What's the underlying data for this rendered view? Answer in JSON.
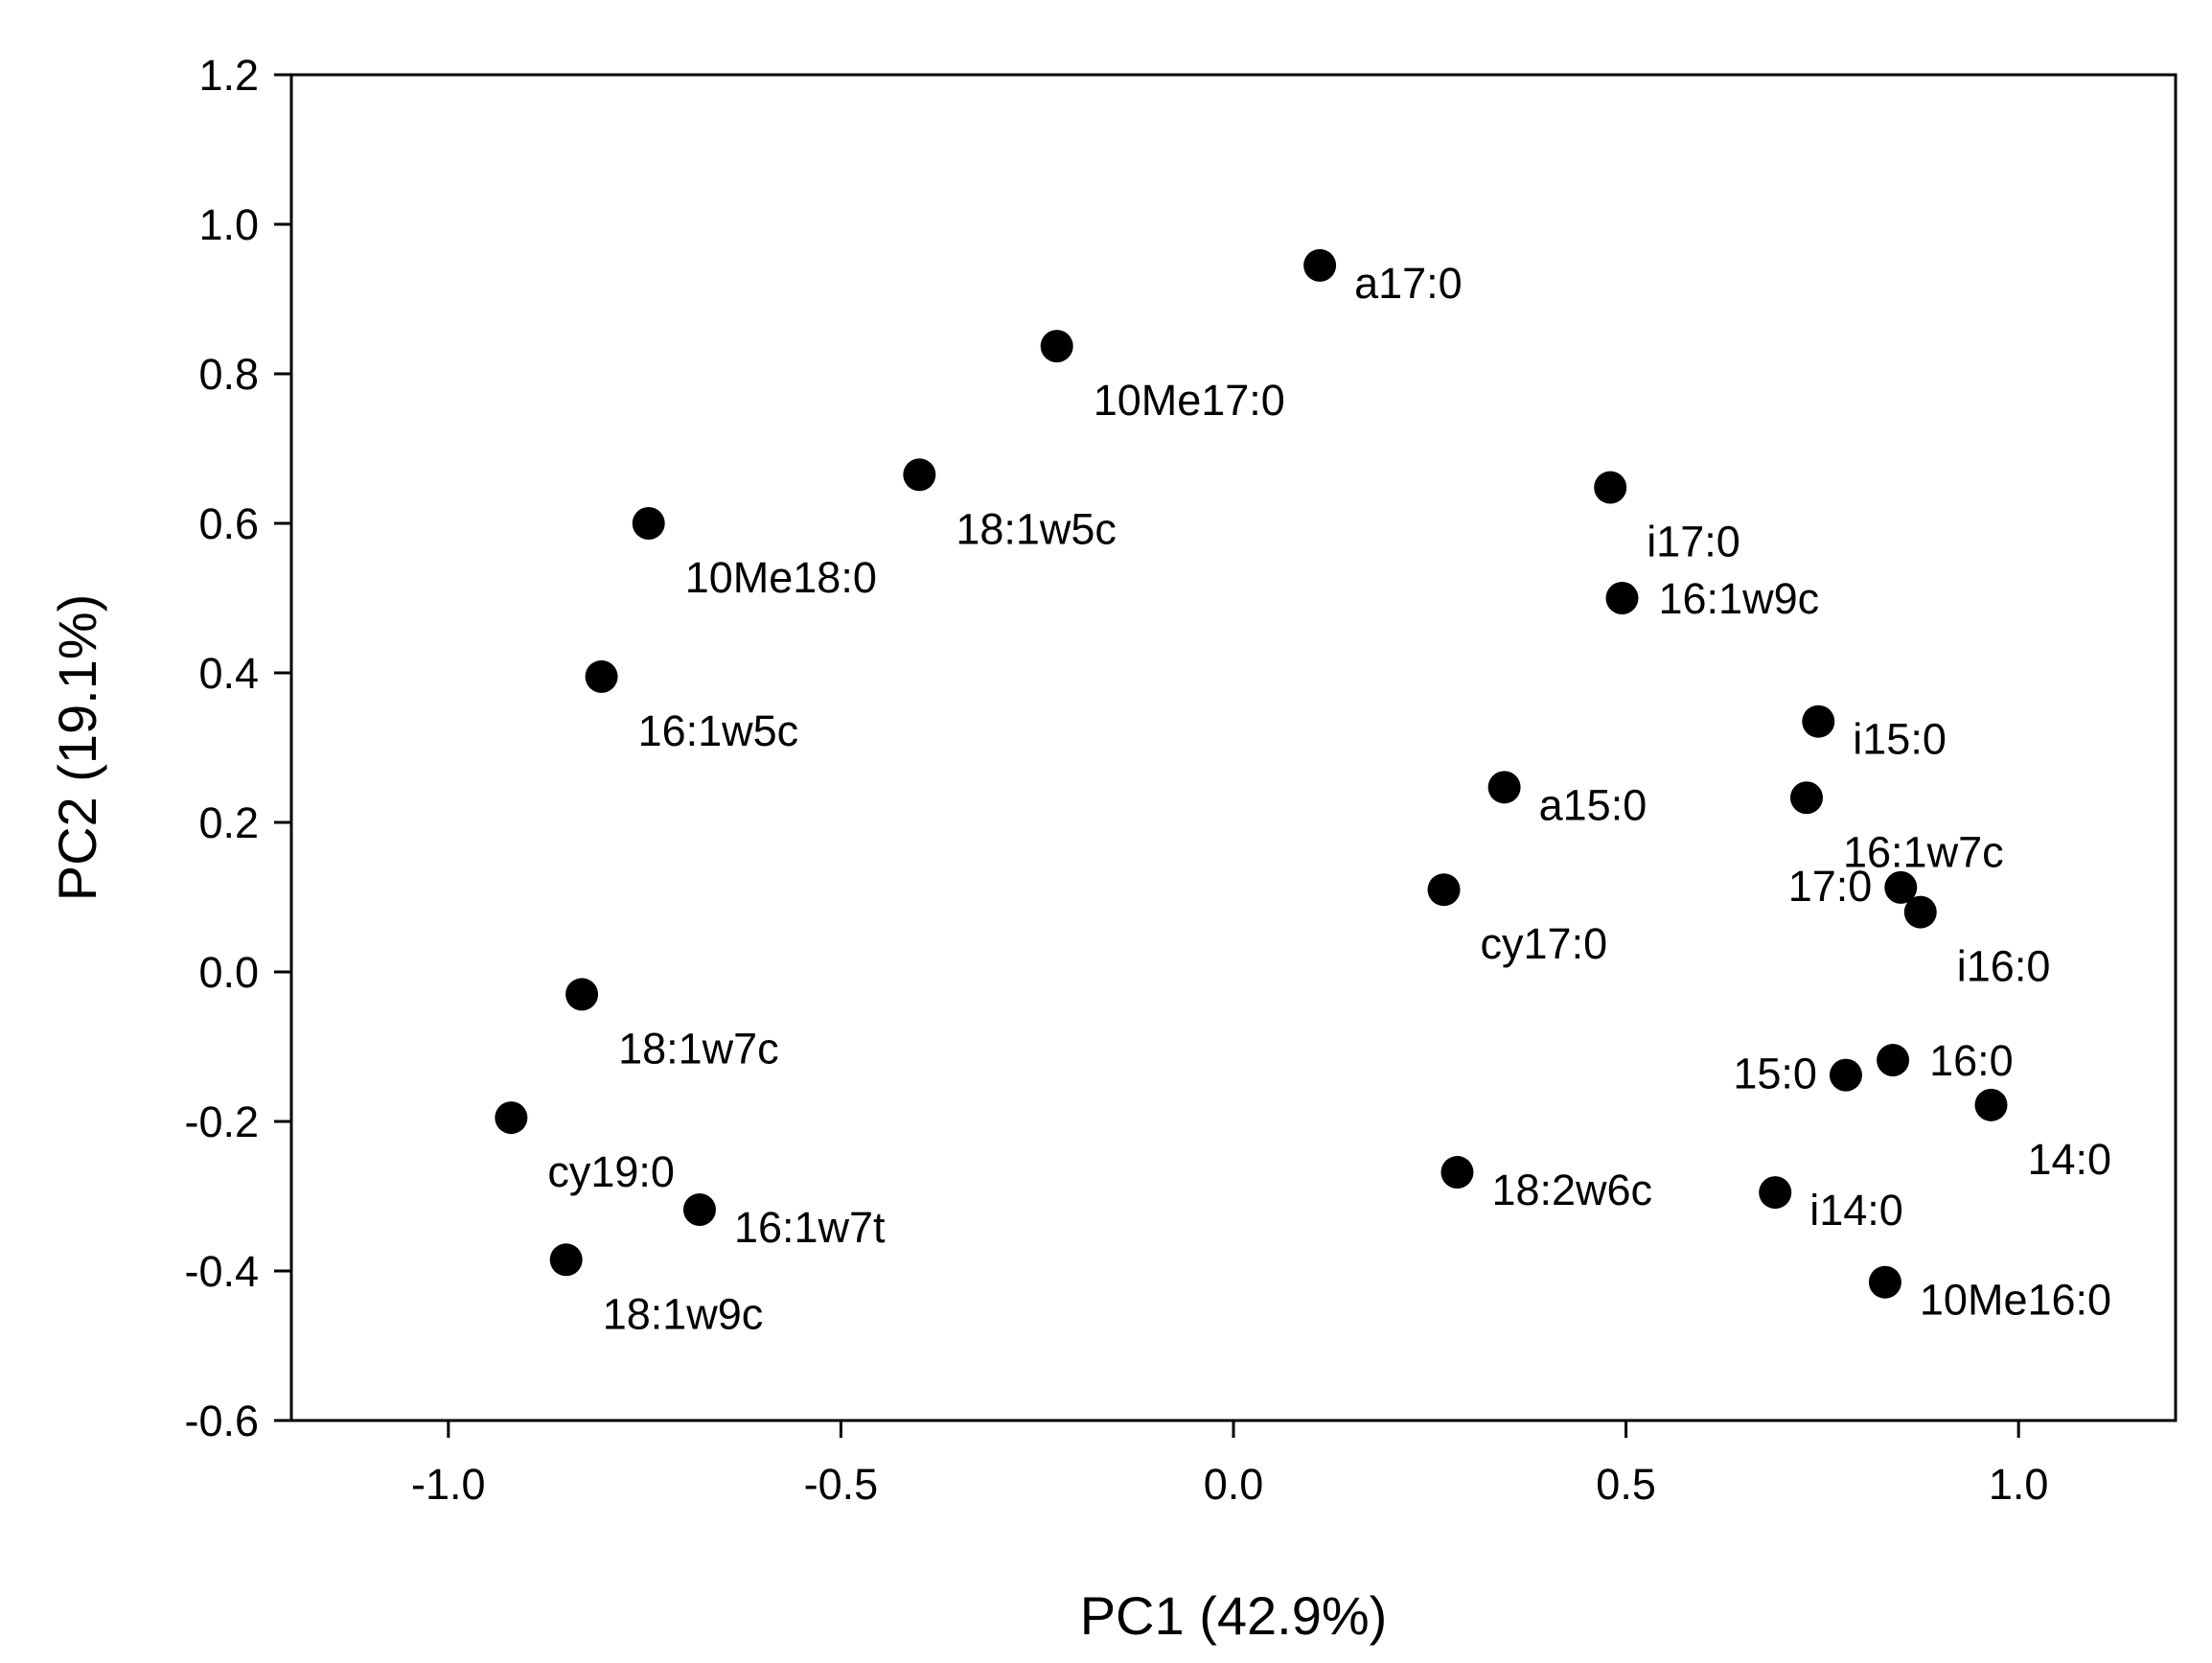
{
  "chart_data": {
    "type": "scatter",
    "title": "",
    "xlabel": "PC1 (42.9%)",
    "ylabel": "PC2 (19.1%)",
    "xlim": [
      -1.2,
      1.2
    ],
    "ylim": [
      -0.6,
      1.2
    ],
    "xticks": [
      -1.0,
      -0.5,
      0.0,
      0.5,
      1.0
    ],
    "xtick_labels": [
      "-1.0",
      "-0.5",
      "0.0",
      "0.5",
      "1.0"
    ],
    "yticks": [
      -0.6,
      -0.4,
      -0.2,
      0.0,
      0.2,
      0.4,
      0.6,
      0.8,
      1.0,
      1.2
    ],
    "ytick_labels": [
      "-0.6",
      "-0.4",
      "-0.2",
      "0.0",
      "0.2",
      "0.4",
      "0.6",
      "0.8",
      "1.0",
      "1.2"
    ],
    "grid": false,
    "marker_color": "#000000",
    "points": [
      {
        "label": "a17:0",
        "x": 0.11,
        "y": 0.945,
        "label_pos": "right-below"
      },
      {
        "label": "10Me17:0",
        "x": -0.225,
        "y": 0.837,
        "label_pos": "below-right"
      },
      {
        "label": "18:1w5c",
        "x": -0.4,
        "y": 0.665,
        "label_pos": "below-right"
      },
      {
        "label": "10Me18:0",
        "x": -0.745,
        "y": 0.6,
        "label_pos": "below-right"
      },
      {
        "label": "16:1w5c",
        "x": -0.805,
        "y": 0.395,
        "label_pos": "below-right"
      },
      {
        "label": "i17:0",
        "x": 0.48,
        "y": 0.648,
        "label_pos": "below-right"
      },
      {
        "label": "16:1w9c",
        "x": 0.495,
        "y": 0.5,
        "label_pos": "right"
      },
      {
        "label": "i15:0",
        "x": 0.745,
        "y": 0.335,
        "label_pos": "right-below"
      },
      {
        "label": "a15:0",
        "x": 0.345,
        "y": 0.247,
        "label_pos": "right-below"
      },
      {
        "label": "16:1w7c",
        "x": 0.73,
        "y": 0.233,
        "label_pos": "below-right"
      },
      {
        "label": "cy17:0",
        "x": 0.268,
        "y": 0.11,
        "label_pos": "below-right"
      },
      {
        "label": "17:0",
        "x": 0.85,
        "y": 0.113,
        "label_pos": "left"
      },
      {
        "label": "i16:0",
        "x": 0.875,
        "y": 0.08,
        "label_pos": "below-right"
      },
      {
        "label": "18:1w7c",
        "x": -0.83,
        "y": -0.03,
        "label_pos": "below-right"
      },
      {
        "label": "16:0",
        "x": 0.84,
        "y": -0.118,
        "label_pos": "right"
      },
      {
        "label": "15:0",
        "x": 0.78,
        "y": -0.138,
        "label_pos": "left"
      },
      {
        "label": "14:0",
        "x": 0.965,
        "y": -0.178,
        "label_pos": "below-right"
      },
      {
        "label": "cy19:0",
        "x": -0.92,
        "y": -0.195,
        "label_pos": "below-right"
      },
      {
        "label": "18:2w6c",
        "x": 0.285,
        "y": -0.268,
        "label_pos": "right-below"
      },
      {
        "label": "i14:0",
        "x": 0.69,
        "y": -0.295,
        "label_pos": "right-below"
      },
      {
        "label": "16:1w7t",
        "x": -0.68,
        "y": -0.318,
        "label_pos": "right-below"
      },
      {
        "label": "18:1w9c",
        "x": -0.85,
        "y": -0.385,
        "label_pos": "below-right"
      },
      {
        "label": "10Me16:0",
        "x": 0.83,
        "y": -0.415,
        "label_pos": "right-below"
      }
    ]
  }
}
